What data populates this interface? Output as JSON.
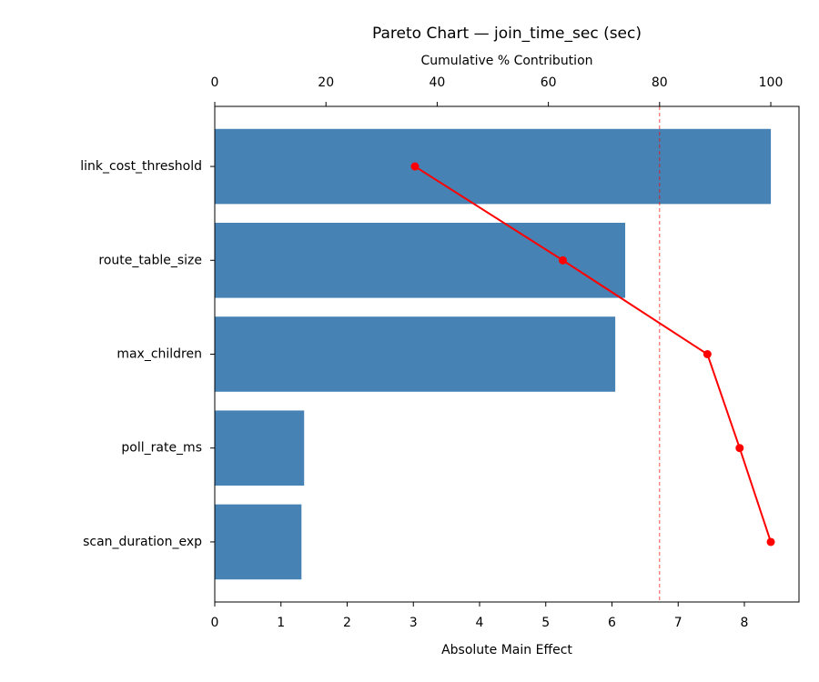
{
  "chart_data": {
    "type": "pareto",
    "title": "Pareto Chart — join_time_sec (sec)",
    "x_label": "Absolute Main Effect",
    "x2_label": "Cumulative % Contribution",
    "categories": [
      "link_cost_threshold",
      "route_table_size",
      "max_children",
      "poll_rate_ms",
      "scan_duration_exp"
    ],
    "series": [
      {
        "color": "#4682b4",
        "values": [
          8.4,
          6.2,
          6.05,
          1.35,
          1.31
        ]
      },
      {
        "color": "#ff0000",
        "axis": "x2",
        "values": [
          36.0,
          62.6,
          88.6,
          94.4,
          100
        ]
      }
    ],
    "xlim": [
      0,
      8.825
    ],
    "xticks": [
      0,
      1,
      2,
      3,
      4,
      5,
      6,
      7,
      8
    ],
    "x2lim": [
      0,
      105.07
    ],
    "x2ticks": [
      0,
      20,
      40,
      60,
      80,
      100
    ],
    "reference_line": {
      "axis": "x2",
      "value": 80,
      "color": "#ff0000"
    }
  }
}
